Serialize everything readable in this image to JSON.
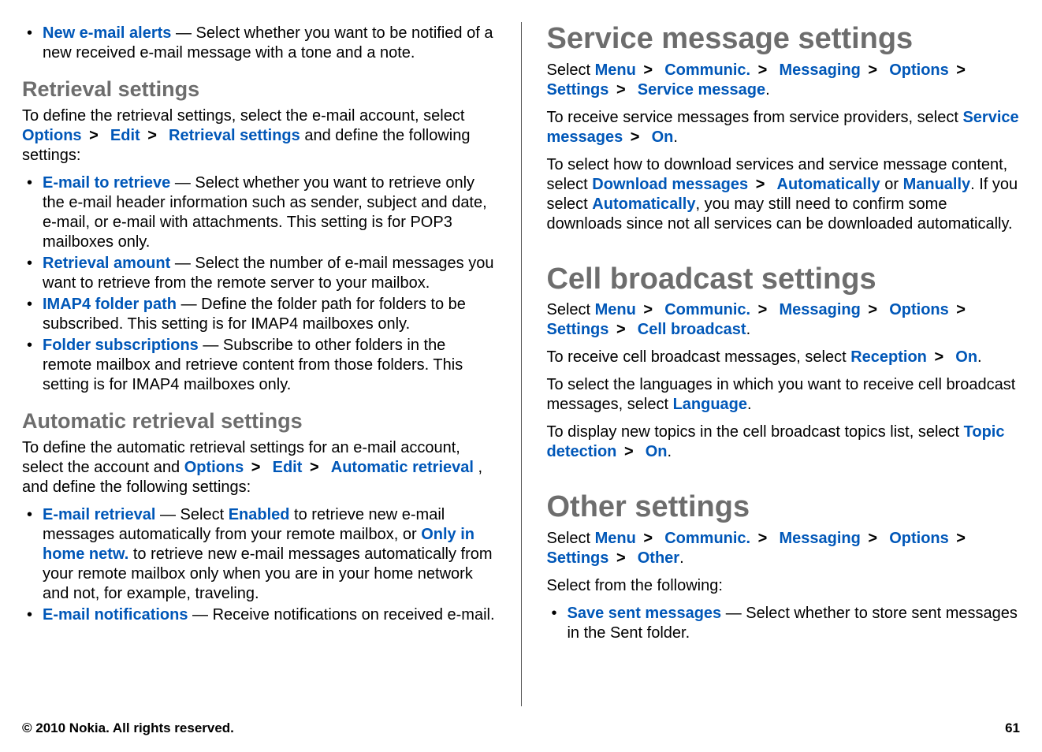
{
  "colors": {
    "blue": "#0057b8",
    "heading_gray": "#6d6d6d",
    "text": "#000000",
    "bg": "#ffffff",
    "divider": "#555555"
  },
  "left": {
    "top_list": [
      {
        "term": "New e-mail alerts",
        "desc": " — Select whether you want to be notified of a new received e-mail message with a tone and a note."
      }
    ],
    "retrieval": {
      "heading": "Retrieval settings",
      "intro": {
        "pre": "To define the retrieval settings, select the e-mail account, select ",
        "path": [
          "Options",
          "Edit",
          "Retrieval settings"
        ],
        "post": " and define the following settings:"
      },
      "items": [
        {
          "term": "E-mail to retrieve",
          "desc": " — Select whether you want to retrieve only the e-mail header information such as sender, subject and date, e-mail, or e-mail with attachments. This setting is for POP3 mailboxes only."
        },
        {
          "term": "Retrieval amount",
          "desc": " — Select the number of e-mail messages you want to retrieve from the remote server to your mailbox."
        },
        {
          "term": "IMAP4 folder path",
          "desc": " — Define the folder path for folders to be subscribed. This setting is for IMAP4 mailboxes only."
        },
        {
          "term": "Folder subscriptions",
          "desc": " — Subscribe to other folders in the remote mailbox and retrieve content from those folders. This setting is for IMAP4 mailboxes only."
        }
      ]
    },
    "auto": {
      "heading": "Automatic retrieval settings",
      "intro": {
        "pre": "To define the automatic retrieval settings for an e-mail account, select the account and ",
        "path": [
          "Options",
          "Edit",
          "Automatic retrieval"
        ],
        "post": ", and define the following settings:"
      },
      "items": [
        {
          "term": "E-mail retrieval",
          "desc_pre": " — Select ",
          "opt1": "Enabled",
          "mid": " to retrieve new e-mail messages automatically from your remote mailbox, or ",
          "opt2": "Only in home netw.",
          "post": " to retrieve new e-mail messages automatically from your remote mailbox only when you are in your home network and not, for example, traveling."
        },
        {
          "term": "E-mail notifications",
          "desc": " — Receive notifications on received e-mail."
        }
      ]
    }
  },
  "right": {
    "service": {
      "heading": "Service message settings",
      "path_line": {
        "pre": "Select ",
        "path": [
          "Menu",
          "Communic.",
          "Messaging",
          "Options",
          "Settings",
          "Service message"
        ],
        "post": "."
      },
      "p1": {
        "pre": "To receive service messages from service providers, select ",
        "path": [
          "Service messages",
          "On"
        ],
        "post": "."
      },
      "p2": {
        "pre": "To select how to download services and service message content, select ",
        "path": [
          "Download messages"
        ],
        "mid": " > ",
        "opt_auto": "Automatically",
        "or": " or ",
        "opt_man": "Manually",
        "period": ". If you select ",
        "again": "Automatically",
        "tail": ", you may still need to confirm some downloads since not all services can be downloaded automatically."
      }
    },
    "cell": {
      "heading": "Cell broadcast settings",
      "path_line": {
        "pre": "Select ",
        "path": [
          "Menu",
          "Communic.",
          "Messaging",
          "Options",
          "Settings",
          "Cell broadcast"
        ],
        "post": "."
      },
      "p1": {
        "pre": "To receive cell broadcast messages, select ",
        "path": [
          "Reception",
          "On"
        ],
        "post": "."
      },
      "p2": {
        "pre": "To select the languages in which you want to receive cell broadcast messages, select ",
        "term": "Language",
        "post": "."
      },
      "p3": {
        "pre": "To display new topics in the cell broadcast topics list, select ",
        "path": [
          "Topic detection",
          "On"
        ],
        "post": "."
      }
    },
    "other": {
      "heading": "Other settings",
      "path_line": {
        "pre": "Select ",
        "path": [
          "Menu",
          "Communic.",
          "Messaging",
          "Options",
          "Settings",
          "Other"
        ],
        "post": "."
      },
      "lead": "Select from the following:",
      "items": [
        {
          "term": "Save sent messages",
          "desc": " — Select whether to store sent messages in the Sent folder."
        }
      ]
    }
  },
  "footer": {
    "copyright": "© 2010 Nokia. All rights reserved.",
    "page_no": "61"
  }
}
